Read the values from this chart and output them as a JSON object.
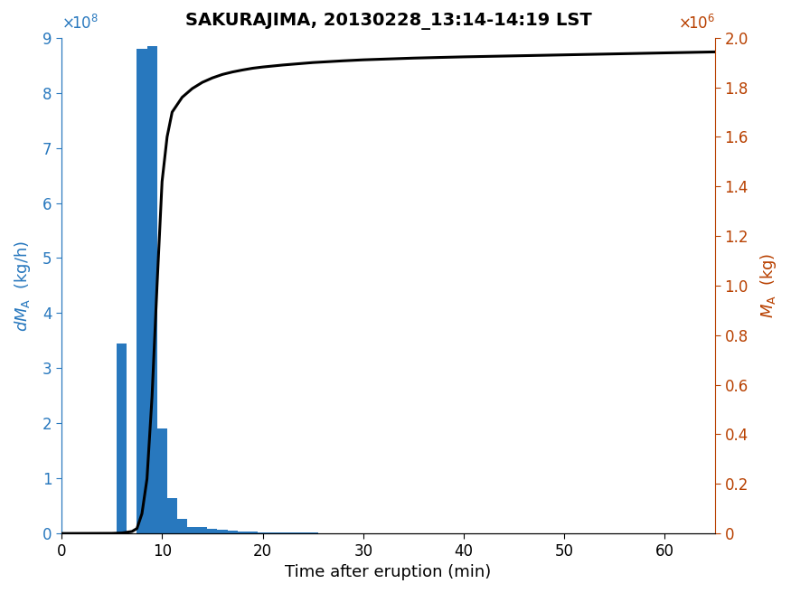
{
  "title": "SAKURAJIMA, 20130228_13:14-14:19 LST",
  "xlabel": "Time after eruption (min)",
  "bar_color": "#2878be",
  "line_color": "#000000",
  "left_axis_color": "#2878be",
  "right_axis_color": "#b84000",
  "xlim": [
    0,
    65
  ],
  "ylim_left": [
    0,
    900000000.0
  ],
  "ylim_right": [
    0,
    2000000.0
  ],
  "bar_centers": [
    6,
    8,
    9,
    10,
    11,
    12,
    13,
    14,
    15,
    16,
    17,
    18,
    19,
    20,
    21,
    22,
    23,
    24,
    25,
    26,
    27,
    28,
    30,
    32,
    35,
    38,
    42,
    48,
    55,
    63
  ],
  "bar_heights": [
    345000000.0,
    880000000.0,
    885000000.0,
    190000000.0,
    65000000.0,
    27000000.0,
    12500000.0,
    11000000.0,
    9000000.0,
    7000000.0,
    5000000.0,
    4000000.0,
    3200000.0,
    2500000.0,
    2000000.0,
    1800000.0,
    1500000.0,
    1200000.0,
    1100000.0,
    900000.0,
    800000.0,
    700000.0,
    500000.0,
    400000.0,
    300000.0,
    200000.0,
    150000.0,
    50000.0,
    20000.0,
    5000.0
  ],
  "bar_width": 1.0,
  "cumulative_x": [
    0,
    5,
    6,
    7,
    7.5,
    8,
    8.5,
    9,
    9.5,
    10,
    10.5,
    11,
    12,
    13,
    14,
    15,
    16,
    17,
    18,
    19,
    20,
    22,
    25,
    28,
    30,
    35,
    40,
    45,
    50,
    55,
    60,
    65
  ],
  "cumulative_y": [
    0,
    500.0,
    2000.0,
    8000.0,
    20000.0,
    80000.0,
    220000.0,
    550000.0,
    1000000.0,
    1420000.0,
    1600000.0,
    1700000.0,
    1760000.0,
    1795000.0,
    1820000.0,
    1838000.0,
    1852000.0,
    1862000.0,
    1870000.0,
    1877000.0,
    1882000.0,
    1890000.0,
    1900000.0,
    1907000.0,
    1911000.0,
    1918000.0,
    1923000.0,
    1927000.0,
    1931000.0,
    1935000.0,
    1939000.0,
    1943000.0
  ],
  "xticks": [
    0,
    10,
    20,
    30,
    40,
    50,
    60
  ],
  "yticks_left": [
    0,
    100000000.0,
    200000000.0,
    300000000.0,
    400000000.0,
    500000000.0,
    600000000.0,
    700000000.0,
    800000000.0,
    900000000.0
  ],
  "yticks_right": [
    0,
    200000.0,
    400000.0,
    600000.0,
    800000.0,
    1000000.0,
    1200000.0,
    1400000.0,
    1600000.0,
    1800000.0,
    2000000.0
  ]
}
